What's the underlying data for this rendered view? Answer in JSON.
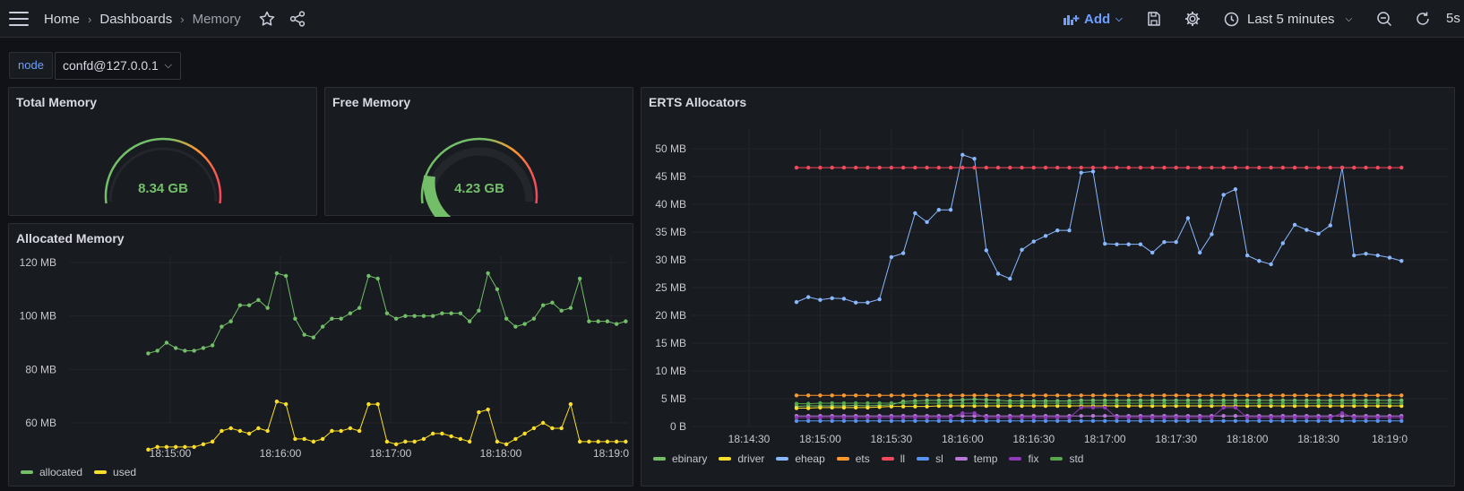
{
  "breadcrumb": {
    "home": "Home",
    "dashboards": "Dashboards",
    "current": "Memory",
    "sep": "›"
  },
  "toolbar": {
    "add_label": "Add",
    "time_range": "Last 5 minutes",
    "refresh_interval": "5s"
  },
  "variables": {
    "node_label": "node",
    "node_value": "confd@127.0.0.1"
  },
  "panels": {
    "total_memory": {
      "title": "Total Memory",
      "value": "8.34 GB"
    },
    "free_memory": {
      "title": "Free Memory",
      "value": "4.23 GB",
      "fraction": 0.21
    },
    "allocated_memory": {
      "title": "Allocated Memory"
    },
    "erts_allocators": {
      "title": "ERTS Allocators"
    }
  },
  "colors": {
    "green": "#73bf69",
    "yellow": "#fade2a",
    "blue": "#8ab8ff",
    "orange": "#ff9830",
    "red": "#f2495c",
    "purple": "#b877d9",
    "dblue": "#5794f2",
    "fix": "#8f3bb8",
    "std": "#56a64b",
    "accent": "#6e9fff"
  },
  "chart_data": [
    {
      "type": "line",
      "title": "Allocated Memory",
      "y_ticks": [
        "60 MB",
        "80 MB",
        "100 MB",
        "120 MB"
      ],
      "ylim": [
        50,
        123
      ],
      "x_ticks": [
        "18:15:00",
        "18:16:00",
        "18:17:00",
        "18:18:00",
        "18:19:00"
      ],
      "x_tick_labels": [
        "18:15:00",
        "18:16:00",
        "18:17:00",
        "18:18:00",
        "18:19:0"
      ],
      "x_start": "18:14:48",
      "x_step_seconds": 5,
      "legend": "bottom-left",
      "series": [
        {
          "name": "allocated",
          "color": "#73bf69",
          "values": [
            86,
            87,
            90,
            88,
            87,
            87,
            88,
            89,
            96,
            98,
            104,
            104,
            106,
            103,
            116,
            115,
            99,
            93,
            92,
            96,
            99,
            99,
            101,
            103,
            115,
            114,
            101,
            99,
            100,
            100,
            100,
            100,
            101,
            101,
            101,
            98,
            102,
            116,
            110,
            99,
            96,
            97,
            99,
            104,
            105,
            102,
            103,
            114,
            98,
            98,
            98,
            97,
            98
          ]
        },
        {
          "name": "used",
          "color": "#fade2a",
          "values": [
            50,
            51,
            51,
            51,
            51,
            51,
            52,
            53,
            57,
            58,
            57,
            56,
            58,
            57,
            68,
            67,
            54,
            54,
            53,
            54,
            57,
            57,
            58,
            57,
            67,
            67,
            53,
            52,
            53,
            53,
            54,
            56,
            56,
            55,
            54,
            53,
            64,
            65,
            53,
            52,
            54,
            56,
            58,
            60,
            58,
            58,
            67,
            53,
            53,
            53,
            53,
            53,
            53
          ]
        }
      ]
    },
    {
      "type": "line",
      "title": "ERTS Allocators",
      "y_ticks": [
        "0 B",
        "5 MB",
        "10 MB",
        "15 MB",
        "20 MB",
        "25 MB",
        "30 MB",
        "35 MB",
        "40 MB",
        "45 MB",
        "50 MB"
      ],
      "ylim": [
        0,
        52
      ],
      "x_ticks": [
        "18:14:30",
        "18:15:00",
        "18:15:30",
        "18:16:00",
        "18:16:30",
        "18:17:00",
        "18:17:30",
        "18:18:00",
        "18:18:30",
        "18:19:00"
      ],
      "x_tick_labels": [
        "18:14:30",
        "18:15:00",
        "18:15:30",
        "18:16:00",
        "18:16:30",
        "18:17:00",
        "18:17:30",
        "18:18:00",
        "18:18:30",
        "18:19:0"
      ],
      "x_start": "18:14:50",
      "x_step_seconds": 5,
      "legend": "bottom-left",
      "series": [
        {
          "name": "ebinary",
          "color": "#73bf69",
          "values": [
            3.6,
            3.7,
            3.7,
            3.7,
            3.7,
            3.8,
            3.7,
            3.8,
            3.9,
            4.5,
            4.6,
            4.7,
            4.7,
            4.7,
            4.8,
            4.9,
            4.8,
            4.7,
            4.6,
            4.6,
            4.6,
            4.6,
            4.6,
            4.6,
            4.7,
            4.7,
            4.7,
            4.7,
            4.7,
            4.7,
            4.7,
            4.7,
            4.7,
            4.7,
            4.7,
            4.7,
            4.7,
            4.7,
            4.7,
            4.7,
            4.7,
            4.7,
            4.7,
            4.7,
            4.7,
            4.7,
            4.7,
            4.7,
            4.7,
            4.7,
            4.7,
            4.7
          ]
        },
        {
          "name": "driver",
          "color": "#fade2a",
          "values": [
            3.3,
            3.3,
            3.4,
            3.4,
            3.4,
            3.4,
            3.4,
            3.5,
            3.6,
            3.6,
            3.6,
            3.6,
            3.7,
            3.7,
            3.7,
            3.7,
            3.7,
            3.7,
            3.7,
            3.7,
            3.7,
            3.7,
            3.7,
            3.7,
            3.7,
            3.7,
            3.7,
            3.7,
            3.7,
            3.7,
            3.7,
            3.7,
            3.7,
            3.7,
            3.7,
            3.7,
            3.7,
            3.7,
            3.7,
            3.7,
            3.7,
            3.7,
            3.7,
            3.7,
            3.7,
            3.7,
            3.7,
            3.7,
            3.7,
            3.7,
            3.7,
            3.7
          ]
        },
        {
          "name": "eheap",
          "color": "#8ab8ff",
          "values": [
            22.4,
            23.3,
            22.8,
            23.1,
            23.0,
            22.3,
            22.3,
            22.9,
            30.5,
            31.2,
            38.4,
            36.8,
            39.0,
            39.0,
            48.9,
            48.2,
            31.7,
            27.5,
            26.6,
            31.8,
            33.3,
            34.3,
            35.3,
            35.3,
            45.7,
            45.9,
            32.9,
            32.8,
            32.8,
            32.8,
            31.3,
            33.2,
            33.2,
            37.5,
            31.3,
            34.6,
            41.7,
            42.7,
            30.8,
            29.8,
            29.2,
            33.0,
            36.3,
            35.4,
            34.7,
            36.2,
            46.6,
            30.8,
            31.1,
            30.8,
            30.4,
            29.8
          ]
        },
        {
          "name": "ets",
          "color": "#ff9830",
          "values": [
            5.6,
            5.6,
            5.6,
            5.6,
            5.6,
            5.6,
            5.6,
            5.6,
            5.6,
            5.6,
            5.6,
            5.6,
            5.6,
            5.6,
            5.6,
            5.6,
            5.6,
            5.6,
            5.6,
            5.6,
            5.6,
            5.6,
            5.6,
            5.6,
            5.6,
            5.6,
            5.6,
            5.6,
            5.6,
            5.6,
            5.6,
            5.6,
            5.6,
            5.6,
            5.6,
            5.6,
            5.6,
            5.6,
            5.6,
            5.6,
            5.6,
            5.6,
            5.6,
            5.6,
            5.6,
            5.6,
            5.6,
            5.6,
            5.6,
            5.6,
            5.6,
            5.6
          ]
        },
        {
          "name": "ll",
          "color": "#f2495c",
          "values": [
            46.6,
            46.6,
            46.6,
            46.6,
            46.6,
            46.6,
            46.6,
            46.6,
            46.6,
            46.6,
            46.6,
            46.6,
            46.6,
            46.6,
            46.6,
            46.6,
            46.6,
            46.6,
            46.6,
            46.6,
            46.6,
            46.6,
            46.6,
            46.6,
            46.6,
            46.6,
            46.6,
            46.6,
            46.6,
            46.6,
            46.6,
            46.6,
            46.6,
            46.6,
            46.6,
            46.6,
            46.6,
            46.6,
            46.6,
            46.6,
            46.6,
            46.6,
            46.6,
            46.6,
            46.6,
            46.6,
            46.6,
            46.6,
            46.6,
            46.6,
            46.6,
            46.6
          ]
        },
        {
          "name": "sl",
          "color": "#5794f2",
          "values": [
            1.0,
            1.0,
            1.0,
            1.0,
            1.0,
            1.0,
            1.0,
            1.0,
            1.0,
            1.0,
            1.0,
            1.0,
            1.0,
            1.0,
            1.0,
            1.0,
            1.0,
            1.0,
            1.0,
            1.0,
            1.0,
            1.0,
            1.0,
            1.0,
            1.0,
            1.0,
            1.0,
            1.0,
            1.0,
            1.0,
            1.0,
            1.0,
            1.0,
            1.0,
            1.0,
            1.0,
            1.0,
            1.0,
            1.0,
            1.0,
            1.0,
            1.0,
            1.0,
            1.0,
            1.0,
            1.0,
            1.0,
            1.0,
            1.0,
            1.0,
            1.0,
            1.0
          ]
        },
        {
          "name": "temp",
          "color": "#b877d9",
          "values": [
            1.9,
            1.9,
            1.9,
            1.9,
            1.9,
            1.9,
            1.9,
            1.9,
            1.9,
            1.9,
            1.9,
            1.9,
            1.9,
            1.9,
            1.9,
            1.9,
            1.9,
            1.9,
            1.9,
            1.9,
            1.9,
            1.9,
            1.9,
            1.9,
            1.9,
            1.9,
            1.9,
            1.9,
            1.9,
            1.9,
            1.9,
            1.9,
            1.9,
            1.9,
            1.9,
            1.9,
            1.9,
            1.9,
            1.9,
            1.9,
            1.9,
            1.9,
            1.9,
            1.9,
            1.9,
            1.9,
            1.9,
            1.9,
            1.9,
            1.9,
            1.9,
            1.9
          ]
        },
        {
          "name": "fix",
          "color": "#8f3bb8",
          "values": [
            1.6,
            1.6,
            1.6,
            1.6,
            1.6,
            1.6,
            1.6,
            1.6,
            1.6,
            1.6,
            1.6,
            1.6,
            1.6,
            1.6,
            2.4,
            2.4,
            1.6,
            1.6,
            1.6,
            1.6,
            1.6,
            1.6,
            1.6,
            1.6,
            3.4,
            3.4,
            3.4,
            1.6,
            1.6,
            1.6,
            1.6,
            1.6,
            1.6,
            1.6,
            1.6,
            1.6,
            3.4,
            3.4,
            1.6,
            1.6,
            1.6,
            1.6,
            1.6,
            1.6,
            1.6,
            1.6,
            2.4,
            1.6,
            1.6,
            1.6,
            1.6,
            1.6
          ]
        },
        {
          "name": "std",
          "color": "#56a64b",
          "values": [
            4.1,
            4.1,
            4.2,
            4.2,
            4.2,
            4.2,
            4.2,
            4.2,
            4.2,
            4.2,
            4.2,
            4.2,
            4.2,
            4.2,
            4.2,
            4.2,
            4.2,
            4.2,
            4.2,
            4.2,
            4.2,
            4.2,
            4.2,
            4.2,
            4.2,
            4.2,
            4.2,
            4.2,
            4.2,
            4.2,
            4.2,
            4.2,
            4.2,
            4.2,
            4.2,
            4.2,
            4.2,
            4.2,
            4.2,
            4.2,
            4.2,
            4.2,
            4.2,
            4.2,
            4.2,
            4.2,
            4.2,
            4.2,
            4.2,
            4.2,
            4.2,
            4.2
          ]
        }
      ]
    }
  ]
}
